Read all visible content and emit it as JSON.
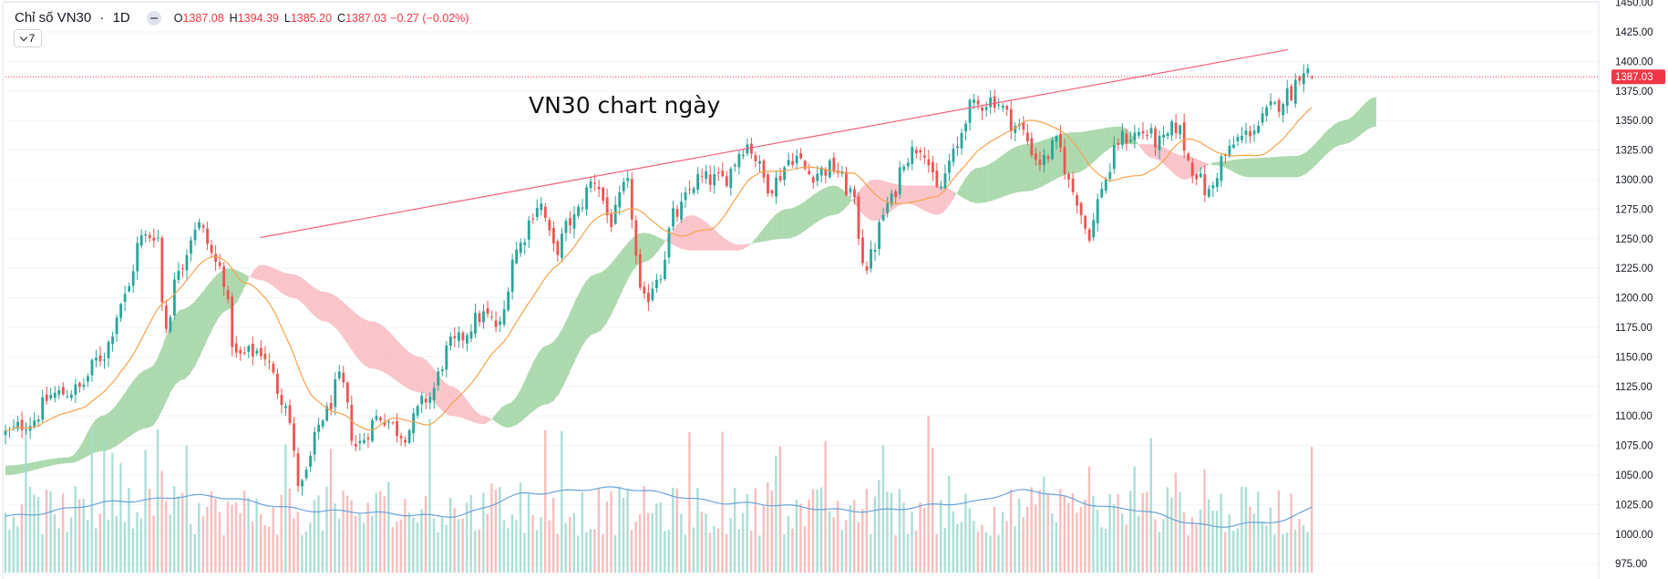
{
  "header": {
    "symbol": "Chỉ số VN30",
    "separator": "·",
    "interval": "1D",
    "ohlc": {
      "o_label": "O",
      "o": "1387.08",
      "h_label": "H",
      "h": "1394.39",
      "l_label": "L",
      "l": "1385.20",
      "c_label": "C",
      "c": "1387.03"
    },
    "change": "−0.27 (−0.02%)"
  },
  "indicator_button": {
    "label": "7"
  },
  "annotation": "VN30 chart ngày",
  "colors": {
    "up": "#26a69a",
    "down": "#ef5350",
    "price_label_bg": "#f23645",
    "trendline": "#f0607a",
    "ma": "#f7a24b",
    "kumo_bull": "#a5d6a7",
    "kumo_bear": "#f9c0c5",
    "volume_ma": "#6aa3d8",
    "axis_text": "#131722"
  },
  "chart_data": {
    "type": "candlestick",
    "title": "Chỉ số VN30 · 1D",
    "ylim": [
      962,
      1452
    ],
    "y_ticks": [
      1450,
      1425,
      1400,
      1375,
      1350,
      1325,
      1300,
      1275,
      1250,
      1225,
      1200,
      1175,
      1150,
      1125,
      1100,
      1075,
      1050,
      1025,
      1000,
      975
    ],
    "y_tick_labels": [
      "1450.00",
      "1425.00",
      "1400.00",
      "1375.00",
      "1350.00",
      "1325.00",
      "1300.00",
      "1275.00",
      "1250.00",
      "1225.00",
      "1200.00",
      "1175.00",
      "1150.00",
      "1125.00",
      "1100.00",
      "1075.00",
      "1050.00",
      "1025.00",
      "1000.00",
      "975.00"
    ],
    "last_price": 1387.03,
    "last_price_label": "1387.03",
    "trendline": {
      "from": {
        "bar": 0.16,
        "price": 1251
      },
      "to": {
        "bar": 0.805,
        "price": 1410
      }
    },
    "close_anchors": [
      {
        "t": 0.0,
        "p": 1085
      },
      {
        "t": 0.015,
        "p": 1095
      },
      {
        "t": 0.03,
        "p": 1118
      },
      {
        "t": 0.045,
        "p": 1122
      },
      {
        "t": 0.06,
        "p": 1150
      },
      {
        "t": 0.075,
        "p": 1200
      },
      {
        "t": 0.085,
        "p": 1250
      },
      {
        "t": 0.095,
        "p": 1255
      },
      {
        "t": 0.1,
        "p": 1175
      },
      {
        "t": 0.11,
        "p": 1230
      },
      {
        "t": 0.12,
        "p": 1262
      },
      {
        "t": 0.135,
        "p": 1225
      },
      {
        "t": 0.145,
        "p": 1150
      },
      {
        "t": 0.16,
        "p": 1155
      },
      {
        "t": 0.175,
        "p": 1115
      },
      {
        "t": 0.185,
        "p": 1040
      },
      {
        "t": 0.2,
        "p": 1100
      },
      {
        "t": 0.21,
        "p": 1130
      },
      {
        "t": 0.22,
        "p": 1075
      },
      {
        "t": 0.235,
        "p": 1100
      },
      {
        "t": 0.25,
        "p": 1085
      },
      {
        "t": 0.265,
        "p": 1115
      },
      {
        "t": 0.28,
        "p": 1160
      },
      {
        "t": 0.3,
        "p": 1185
      },
      {
        "t": 0.31,
        "p": 1175
      },
      {
        "t": 0.32,
        "p": 1240
      },
      {
        "t": 0.335,
        "p": 1280
      },
      {
        "t": 0.345,
        "p": 1240
      },
      {
        "t": 0.355,
        "p": 1265
      },
      {
        "t": 0.37,
        "p": 1300
      },
      {
        "t": 0.38,
        "p": 1265
      },
      {
        "t": 0.39,
        "p": 1295
      },
      {
        "t": 0.4,
        "p": 1195
      },
      {
        "t": 0.41,
        "p": 1220
      },
      {
        "t": 0.42,
        "p": 1270
      },
      {
        "t": 0.435,
        "p": 1300
      },
      {
        "t": 0.45,
        "p": 1300
      },
      {
        "t": 0.465,
        "p": 1330
      },
      {
        "t": 0.48,
        "p": 1295
      },
      {
        "t": 0.495,
        "p": 1320
      },
      {
        "t": 0.505,
        "p": 1305
      },
      {
        "t": 0.52,
        "p": 1310
      },
      {
        "t": 0.53,
        "p": 1290
      },
      {
        "t": 0.54,
        "p": 1228
      },
      {
        "t": 0.555,
        "p": 1280
      },
      {
        "t": 0.565,
        "p": 1320
      },
      {
        "t": 0.575,
        "p": 1330
      },
      {
        "t": 0.585,
        "p": 1290
      },
      {
        "t": 0.595,
        "p": 1320
      },
      {
        "t": 0.605,
        "p": 1360
      },
      {
        "t": 0.62,
        "p": 1368
      },
      {
        "t": 0.635,
        "p": 1345
      },
      {
        "t": 0.65,
        "p": 1315
      },
      {
        "t": 0.66,
        "p": 1330
      },
      {
        "t": 0.67,
        "p": 1290
      },
      {
        "t": 0.68,
        "p": 1255
      },
      {
        "t": 0.69,
        "p": 1300
      },
      {
        "t": 0.7,
        "p": 1335
      },
      {
        "t": 0.715,
        "p": 1340
      },
      {
        "t": 0.725,
        "p": 1330
      },
      {
        "t": 0.735,
        "p": 1345
      },
      {
        "t": 0.745,
        "p": 1310
      },
      {
        "t": 0.755,
        "p": 1288
      },
      {
        "t": 0.765,
        "p": 1320
      },
      {
        "t": 0.775,
        "p": 1335
      },
      {
        "t": 0.785,
        "p": 1345
      },
      {
        "t": 0.795,
        "p": 1360
      },
      {
        "t": 0.805,
        "p": 1372
      },
      {
        "t": 0.815,
        "p": 1395
      },
      {
        "t": 0.82,
        "p": 1387
      }
    ],
    "kumo_anchors": [
      {
        "t": 0.0,
        "a": 1050,
        "b": 1058
      },
      {
        "t": 0.04,
        "a": 1060,
        "b": 1065
      },
      {
        "t": 0.06,
        "a": 1070,
        "b": 1100
      },
      {
        "t": 0.09,
        "a": 1090,
        "b": 1140
      },
      {
        "t": 0.11,
        "a": 1130,
        "b": 1190
      },
      {
        "t": 0.14,
        "a": 1190,
        "b": 1225
      },
      {
        "t": 0.16,
        "a": 1228,
        "b": 1215
      },
      {
        "t": 0.18,
        "a": 1220,
        "b": 1200
      },
      {
        "t": 0.2,
        "a": 1205,
        "b": 1180
      },
      {
        "t": 0.23,
        "a": 1180,
        "b": 1140
      },
      {
        "t": 0.26,
        "a": 1150,
        "b": 1120
      },
      {
        "t": 0.28,
        "a": 1125,
        "b": 1100
      },
      {
        "t": 0.3,
        "a": 1100,
        "b": 1093
      },
      {
        "t": 0.315,
        "a": 1090,
        "b": 1110
      },
      {
        "t": 0.34,
        "a": 1110,
        "b": 1160
      },
      {
        "t": 0.37,
        "a": 1170,
        "b": 1220
      },
      {
        "t": 0.4,
        "a": 1230,
        "b": 1255
      },
      {
        "t": 0.43,
        "a": 1270,
        "b": 1240
      },
      {
        "t": 0.46,
        "a": 1245,
        "b": 1240
      },
      {
        "t": 0.49,
        "a": 1250,
        "b": 1275
      },
      {
        "t": 0.52,
        "a": 1270,
        "b": 1295
      },
      {
        "t": 0.545,
        "a": 1300,
        "b": 1265
      },
      {
        "t": 0.565,
        "a": 1295,
        "b": 1280
      },
      {
        "t": 0.585,
        "a": 1295,
        "b": 1270
      },
      {
        "t": 0.61,
        "a": 1280,
        "b": 1310
      },
      {
        "t": 0.64,
        "a": 1290,
        "b": 1330
      },
      {
        "t": 0.67,
        "a": 1305,
        "b": 1340
      },
      {
        "t": 0.7,
        "a": 1330,
        "b": 1345
      },
      {
        "t": 0.72,
        "a": 1330,
        "b": 1318
      },
      {
        "t": 0.74,
        "a": 1320,
        "b": 1300
      },
      {
        "t": 0.76,
        "a": 1312,
        "b": 1315
      },
      {
        "t": 0.78,
        "a": 1302,
        "b": 1318
      },
      {
        "t": 0.81,
        "a": 1302,
        "b": 1320
      },
      {
        "t": 0.84,
        "a": 1330,
        "b": 1350
      },
      {
        "t": 0.86,
        "a": 1345,
        "b": 1370
      }
    ],
    "volume_ma_anchors": [
      {
        "t": 0.0,
        "v": 0.3
      },
      {
        "t": 0.08,
        "v": 0.42
      },
      {
        "t": 0.12,
        "v": 0.46
      },
      {
        "t": 0.2,
        "v": 0.34
      },
      {
        "t": 0.28,
        "v": 0.3
      },
      {
        "t": 0.33,
        "v": 0.48
      },
      {
        "t": 0.38,
        "v": 0.52
      },
      {
        "t": 0.46,
        "v": 0.4
      },
      {
        "t": 0.54,
        "v": 0.34
      },
      {
        "t": 0.6,
        "v": 0.4
      },
      {
        "t": 0.64,
        "v": 0.5
      },
      {
        "t": 0.7,
        "v": 0.36
      },
      {
        "t": 0.76,
        "v": 0.22
      },
      {
        "t": 0.8,
        "v": 0.26
      },
      {
        "t": 0.83,
        "v": 0.42
      }
    ]
  }
}
